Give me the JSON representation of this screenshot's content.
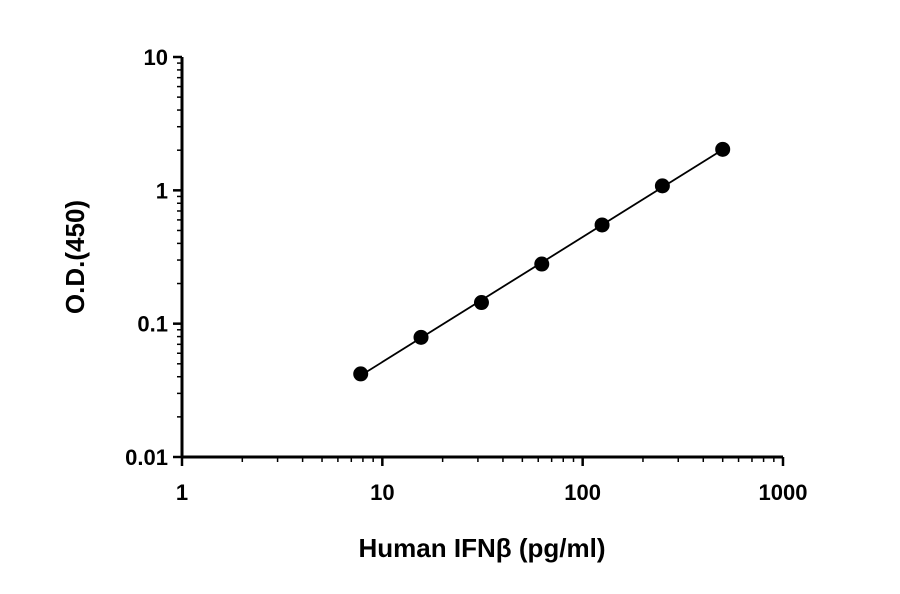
{
  "chart_data": {
    "type": "scatter",
    "title": "",
    "xlabel": "Human IFNβ (pg/ml)",
    "ylabel": "O.D.(450)",
    "xscale": "log",
    "yscale": "log",
    "xlim": [
      1,
      1000
    ],
    "ylim": [
      0.01,
      10
    ],
    "x_ticks": [
      1,
      10,
      100,
      1000
    ],
    "x_tick_labels": [
      "1",
      "10",
      "100",
      "1000"
    ],
    "y_ticks": [
      0.01,
      0.1,
      1,
      10
    ],
    "y_tick_labels": [
      "0.01",
      "0.1",
      "1",
      "10"
    ],
    "grid": false,
    "legend": "none",
    "fit_line": true,
    "marker_color": "#000000",
    "series": [
      {
        "x": [
          7.8,
          15.6,
          31.25,
          62.5,
          125,
          250,
          500
        ],
        "y": [
          0.042,
          0.079,
          0.144,
          0.28,
          0.55,
          1.08,
          2.03
        ]
      }
    ]
  }
}
